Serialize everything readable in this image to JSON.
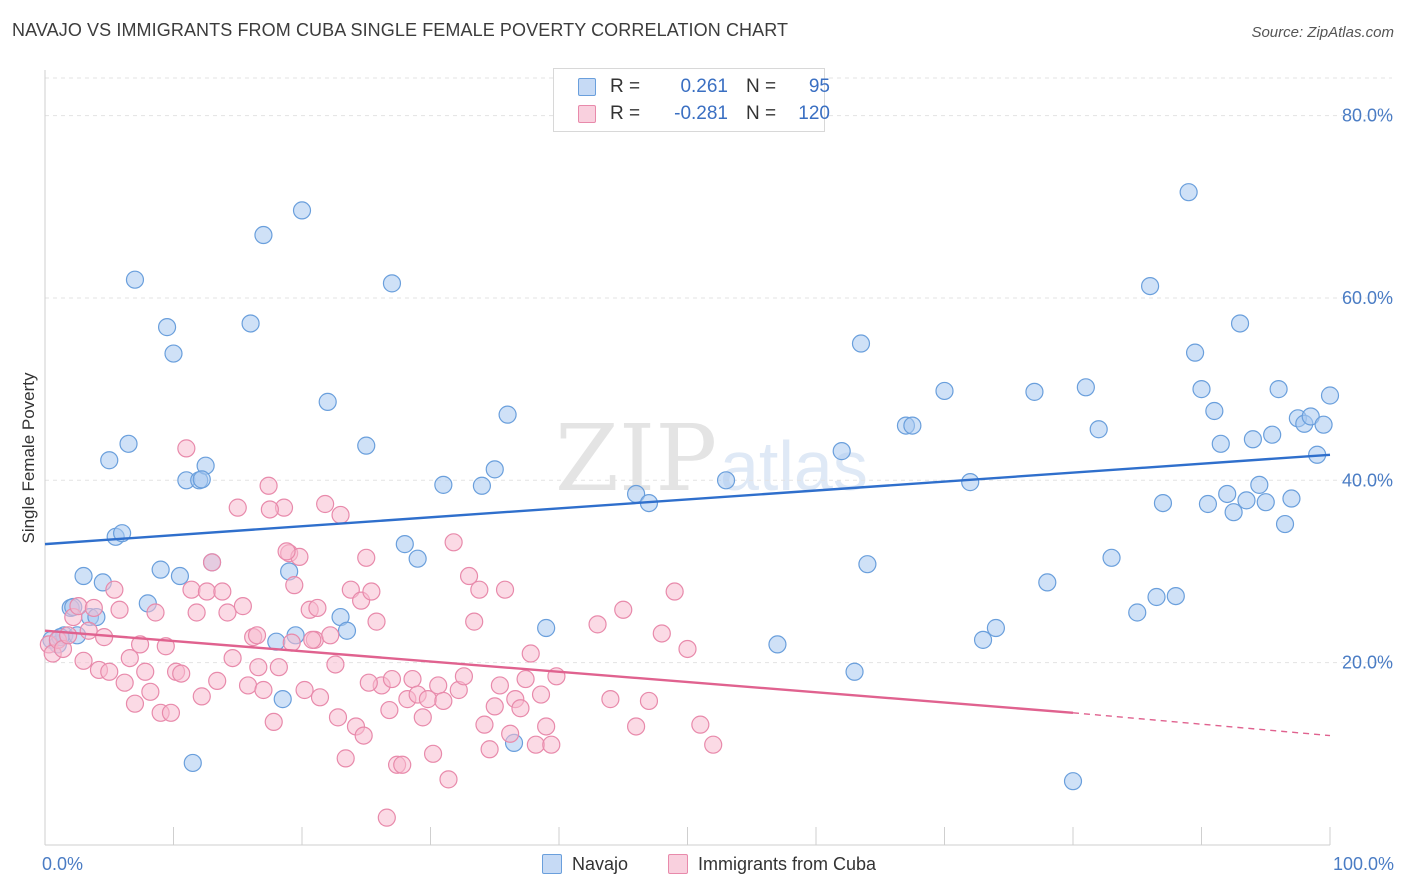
{
  "title": "NAVAJO VS IMMIGRANTS FROM CUBA SINGLE FEMALE POVERTY CORRELATION CHART",
  "source": "Source: ZipAtlas.com",
  "watermark": {
    "zip": "ZIP",
    "atlas": "atlas"
  },
  "legend": {
    "rows": [
      {
        "r_label": "R =",
        "r_value": "0.261",
        "n_label": "N =",
        "n_value": "95",
        "color": "#a8c8f0",
        "border": "#6a9fdc"
      },
      {
        "r_label": "R =",
        "r_value": "-0.281",
        "n_label": "N =",
        "n_value": "120",
        "color": "#f7bcd0",
        "border": "#e88aab"
      }
    ]
  },
  "chart_data": {
    "type": "scatter",
    "title": "NAVAJO VS IMMIGRANTS FROM CUBA SINGLE FEMALE POVERTY CORRELATION CHART",
    "xlabel": "",
    "ylabel": "Single Female Poverty",
    "xlim": [
      0,
      100
    ],
    "ylim": [
      0,
      85
    ],
    "x_ticks": [
      "0.0%",
      "100.0%"
    ],
    "y_ticks": [
      {
        "value": 20,
        "label": "20.0%"
      },
      {
        "value": 40,
        "label": "40.0%"
      },
      {
        "value": 60,
        "label": "60.0%"
      },
      {
        "value": 80,
        "label": "80.0%"
      }
    ],
    "grid": true,
    "legend_position": "top-center",
    "series": [
      {
        "name": "Navajo",
        "color": "#a8c8f0",
        "edge": "#6a9fdc",
        "trend": {
          "x": [
            0,
            100
          ],
          "y": [
            33.0,
            42.8
          ],
          "color": "#2f6fcc"
        },
        "points": [
          [
            0.5,
            22.5
          ],
          [
            1,
            22.0
          ],
          [
            1.5,
            23.0
          ],
          [
            2,
            26.0
          ],
          [
            2.5,
            23.0
          ],
          [
            3,
            29.5
          ],
          [
            3.5,
            25.0
          ],
          [
            4,
            25.0
          ],
          [
            4.5,
            28.8
          ],
          [
            5,
            42.2
          ],
          [
            5.5,
            33.8
          ],
          [
            6,
            34.2
          ],
          [
            6.5,
            44.0
          ],
          [
            7,
            62.0
          ],
          [
            8,
            26.5
          ],
          [
            9,
            30.2
          ],
          [
            9.5,
            56.8
          ],
          [
            10,
            53.9
          ],
          [
            10.5,
            29.5
          ],
          [
            11,
            40.0
          ],
          [
            11.5,
            9.0
          ],
          [
            12,
            40.0
          ],
          [
            12.5,
            41.6
          ],
          [
            13,
            31.0
          ],
          [
            16,
            57.2
          ],
          [
            17,
            66.9
          ],
          [
            18,
            22.3
          ],
          [
            18.5,
            16.0
          ],
          [
            19,
            30.0
          ],
          [
            19.5,
            23.0
          ],
          [
            20,
            69.6
          ],
          [
            22,
            48.6
          ],
          [
            23,
            25.0
          ],
          [
            23.5,
            23.5
          ],
          [
            25,
            43.8
          ],
          [
            27,
            61.6
          ],
          [
            28,
            33.0
          ],
          [
            29,
            31.4
          ],
          [
            31,
            39.5
          ],
          [
            34,
            39.4
          ],
          [
            35,
            41.2
          ],
          [
            36,
            47.2
          ],
          [
            36.5,
            11.2
          ],
          [
            39,
            23.8
          ],
          [
            46,
            38.5
          ],
          [
            47,
            37.5
          ],
          [
            53,
            40.0
          ],
          [
            57,
            22.0
          ],
          [
            62,
            43.2
          ],
          [
            63,
            19.0
          ],
          [
            63.5,
            55.0
          ],
          [
            64,
            30.8
          ],
          [
            67,
            46.0
          ],
          [
            67.5,
            46.0
          ],
          [
            70,
            49.8
          ],
          [
            72,
            39.8
          ],
          [
            73,
            22.5
          ],
          [
            74,
            23.8
          ],
          [
            77,
            49.7
          ],
          [
            78,
            28.8
          ],
          [
            80,
            7.0
          ],
          [
            81,
            50.2
          ],
          [
            82,
            45.6
          ],
          [
            83,
            31.5
          ],
          [
            85,
            25.5
          ],
          [
            86,
            61.3
          ],
          [
            86.5,
            27.2
          ],
          [
            87,
            37.5
          ],
          [
            88,
            27.3
          ],
          [
            89,
            71.6
          ],
          [
            89.5,
            54.0
          ],
          [
            90,
            50.0
          ],
          [
            90.5,
            37.4
          ],
          [
            91,
            47.6
          ],
          [
            91.5,
            44.0
          ],
          [
            92,
            38.5
          ],
          [
            92.5,
            36.5
          ],
          [
            93,
            57.2
          ],
          [
            93.5,
            37.8
          ],
          [
            94,
            44.5
          ],
          [
            94.5,
            39.5
          ],
          [
            95,
            37.6
          ],
          [
            95.5,
            45.0
          ],
          [
            96,
            50.0
          ],
          [
            96.5,
            35.2
          ],
          [
            97,
            38.0
          ],
          [
            97.5,
            46.8
          ],
          [
            98,
            46.2
          ],
          [
            98.5,
            47.0
          ],
          [
            99,
            42.8
          ],
          [
            99.5,
            46.1
          ],
          [
            100,
            49.3
          ],
          [
            1.2,
            22.8
          ],
          [
            2.2,
            26.1
          ],
          [
            12.2,
            40.1
          ]
        ]
      },
      {
        "name": "Immigrants from Cuba",
        "color": "#f7bcd0",
        "edge": "#e88aab",
        "trend": {
          "x": [
            0,
            80
          ],
          "y": [
            23.5,
            14.5
          ],
          "dash_to": {
            "x": 100,
            "y": 12.0
          },
          "color": "#e0628f"
        },
        "points": [
          [
            0.3,
            22.0
          ],
          [
            0.6,
            21.0
          ],
          [
            1,
            22.5
          ],
          [
            1.4,
            21.5
          ],
          [
            1.8,
            23.0
          ],
          [
            2.2,
            25.0
          ],
          [
            2.6,
            26.2
          ],
          [
            3,
            20.2
          ],
          [
            3.4,
            23.5
          ],
          [
            3.8,
            26.0
          ],
          [
            4.2,
            19.2
          ],
          [
            4.6,
            22.8
          ],
          [
            5,
            19.0
          ],
          [
            5.4,
            28.0
          ],
          [
            5.8,
            25.8
          ],
          [
            6.2,
            17.8
          ],
          [
            6.6,
            20.5
          ],
          [
            7,
            15.5
          ],
          [
            7.4,
            22.0
          ],
          [
            7.8,
            19.0
          ],
          [
            8.2,
            16.8
          ],
          [
            8.6,
            25.5
          ],
          [
            9,
            14.5
          ],
          [
            9.4,
            21.8
          ],
          [
            9.8,
            14.5
          ],
          [
            10.2,
            19.0
          ],
          [
            10.6,
            18.8
          ],
          [
            11,
            43.5
          ],
          [
            11.4,
            28.0
          ],
          [
            11.8,
            25.5
          ],
          [
            12.2,
            16.3
          ],
          [
            12.6,
            27.8
          ],
          [
            13,
            31.0
          ],
          [
            13.4,
            18.0
          ],
          [
            13.8,
            27.8
          ],
          [
            14.2,
            25.5
          ],
          [
            14.6,
            20.5
          ],
          [
            15,
            37.0
          ],
          [
            15.4,
            26.2
          ],
          [
            15.8,
            17.5
          ],
          [
            16.2,
            22.8
          ],
          [
            16.6,
            19.5
          ],
          [
            17,
            17.0
          ],
          [
            17.4,
            39.4
          ],
          [
            17.8,
            13.5
          ],
          [
            18.2,
            19.5
          ],
          [
            18.6,
            37.0
          ],
          [
            19,
            32.0
          ],
          [
            19.4,
            28.5
          ],
          [
            19.8,
            31.6
          ],
          [
            20.2,
            17.0
          ],
          [
            20.6,
            25.8
          ],
          [
            21,
            22.5
          ],
          [
            21.4,
            16.2
          ],
          [
            21.8,
            37.4
          ],
          [
            22.2,
            23.0
          ],
          [
            22.6,
            19.8
          ],
          [
            23,
            36.2
          ],
          [
            23.4,
            9.5
          ],
          [
            23.8,
            28.0
          ],
          [
            24.2,
            13.0
          ],
          [
            24.6,
            26.8
          ],
          [
            25,
            31.5
          ],
          [
            25.4,
            27.8
          ],
          [
            25.8,
            24.5
          ],
          [
            26.2,
            17.5
          ],
          [
            26.6,
            3.0
          ],
          [
            27,
            18.2
          ],
          [
            27.4,
            8.8
          ],
          [
            27.8,
            8.8
          ],
          [
            28.2,
            16.0
          ],
          [
            28.6,
            18.2
          ],
          [
            29,
            16.5
          ],
          [
            29.4,
            14.0
          ],
          [
            29.8,
            16.0
          ],
          [
            30.2,
            10.0
          ],
          [
            30.6,
            17.5
          ],
          [
            31,
            15.8
          ],
          [
            31.4,
            7.2
          ],
          [
            31.8,
            33.2
          ],
          [
            32.2,
            17.0
          ],
          [
            32.6,
            18.5
          ],
          [
            33,
            29.5
          ],
          [
            33.4,
            24.5
          ],
          [
            33.8,
            28.0
          ],
          [
            34.2,
            13.2
          ],
          [
            34.6,
            10.5
          ],
          [
            35,
            15.2
          ],
          [
            35.4,
            17.5
          ],
          [
            35.8,
            28.0
          ],
          [
            36.2,
            12.2
          ],
          [
            36.6,
            16.0
          ],
          [
            37,
            15.0
          ],
          [
            37.4,
            18.2
          ],
          [
            37.8,
            21.0
          ],
          [
            38.2,
            11.0
          ],
          [
            38.6,
            16.5
          ],
          [
            39,
            13.0
          ],
          [
            39.4,
            11.0
          ],
          [
            39.8,
            18.5
          ],
          [
            43,
            24.2
          ],
          [
            44,
            16.0
          ],
          [
            45,
            25.8
          ],
          [
            46,
            13.0
          ],
          [
            47,
            15.8
          ],
          [
            48,
            23.2
          ],
          [
            49,
            27.8
          ],
          [
            50,
            21.5
          ],
          [
            51,
            13.2
          ],
          [
            52,
            11.0
          ],
          [
            16.5,
            23.0
          ],
          [
            17.5,
            36.8
          ],
          [
            18.8,
            32.2
          ],
          [
            19.2,
            22.2
          ],
          [
            20.8,
            22.5
          ],
          [
            21.2,
            26.0
          ],
          [
            22.8,
            14.0
          ],
          [
            24.8,
            12.0
          ],
          [
            25.2,
            17.8
          ],
          [
            26.8,
            14.8
          ]
        ]
      }
    ]
  },
  "bottom_legend": [
    {
      "label": "Navajo",
      "color": "#a8c8f0",
      "border": "#6a9fdc"
    },
    {
      "label": "Immigrants from Cuba",
      "color": "#f7bcd0",
      "border": "#e88aab"
    }
  ]
}
